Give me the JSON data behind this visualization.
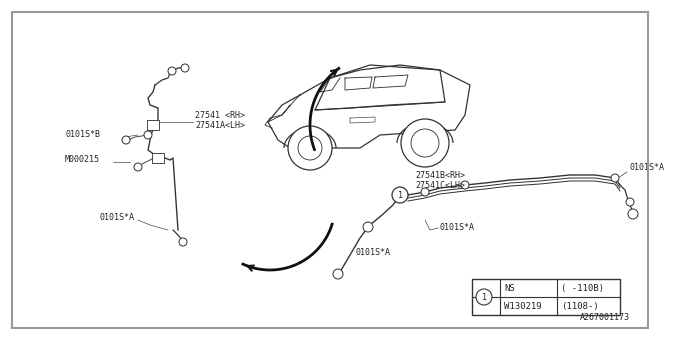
{
  "bg_color": "#ffffff",
  "ec": "#333333",
  "lw": 0.9,
  "diagram_id": "A267001173",
  "table": {
    "rows": [
      {
        "col1": "NS",
        "col2": "( -110B)"
      },
      {
        "col1": "W130219",
        "col2": "(1108-)"
      }
    ]
  },
  "front_labels": {
    "part": [
      "27541 <RH>",
      "27541A<LH>"
    ],
    "conn1": "0101S*B",
    "conn2": "M000215",
    "conn3": "0101S*A"
  },
  "rear_labels": {
    "part": [
      "27541B<RH>",
      "27541C<LH>"
    ],
    "conn1": "0101S*A",
    "conn2": "0101S*A",
    "conn3": "0101S*A"
  }
}
